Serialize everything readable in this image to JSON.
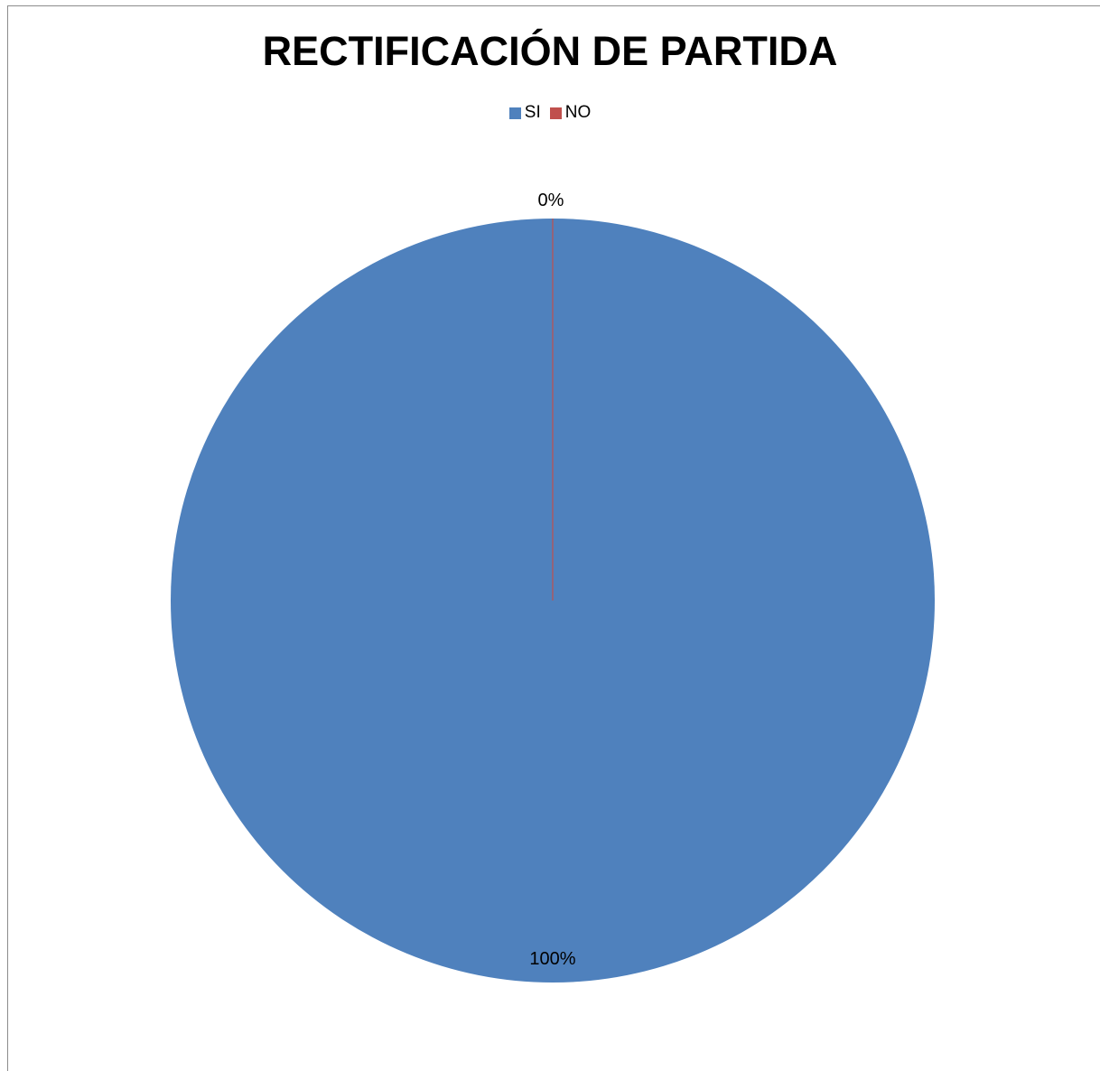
{
  "chart_data": {
    "type": "pie",
    "title": "RECTIFICACIÓN DE PARTIDA",
    "categories": [
      "SI",
      "NO"
    ],
    "values": [
      100,
      0
    ],
    "data_labels": [
      "100%",
      "0%"
    ],
    "colors": [
      "#4f81bd",
      "#c0504d"
    ],
    "legend": "top"
  }
}
